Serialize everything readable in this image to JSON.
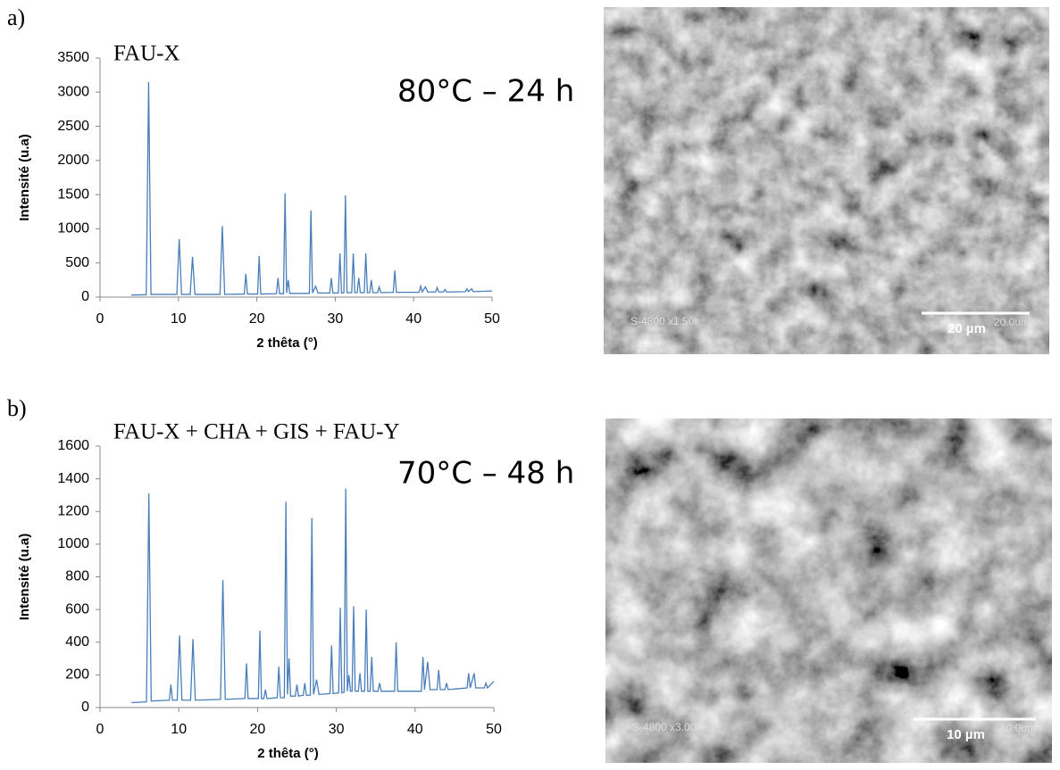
{
  "chart_data": [
    {
      "type": "line",
      "panel_label": "a)",
      "label": "FAU-X",
      "annotation": "80°C – 24 h",
      "xlabel": "2 thêta (°)",
      "ylabel": "Intensité (u.a)",
      "color": "#4a7ebb",
      "xlim": [
        0,
        50
      ],
      "xticks": [
        0,
        10,
        20,
        30,
        40,
        50
      ],
      "ylim": [
        0,
        3500
      ],
      "yticks": [
        0,
        500,
        1000,
        1500,
        2000,
        2500,
        3000,
        3500
      ],
      "x": [
        4,
        5.9,
        6.2,
        6.5,
        9.8,
        10.1,
        10.4,
        11.5,
        11.8,
        12.1,
        15.3,
        15.6,
        15.9,
        18.4,
        18.6,
        18.8,
        20.1,
        20.3,
        20.5,
        22.5,
        22.7,
        22.9,
        23.4,
        23.6,
        23.8,
        24.0,
        24.2,
        26.7,
        26.9,
        27.1,
        27.5,
        27.8,
        29.3,
        29.5,
        29.7,
        30.4,
        30.6,
        30.8,
        31.1,
        31.3,
        31.5,
        32.1,
        32.3,
        32.5,
        32.8,
        33.0,
        33.2,
        33.7,
        33.9,
        34.1,
        34.4,
        34.6,
        34.8,
        35.4,
        35.6,
        35.8,
        37.4,
        37.6,
        37.8,
        40.7,
        40.9,
        41.1,
        41.5,
        41.8,
        42.8,
        43.0,
        43.2,
        43.8,
        44.0,
        44.2,
        46.6,
        46.8,
        47.0,
        47.4,
        47.6,
        50
      ],
      "values": [
        30,
        35,
        3150,
        40,
        40,
        850,
        40,
        40,
        590,
        40,
        40,
        1040,
        40,
        45,
        340,
        45,
        45,
        600,
        45,
        50,
        280,
        50,
        50,
        1520,
        60,
        250,
        55,
        55,
        1270,
        60,
        160,
        60,
        60,
        280,
        60,
        60,
        640,
        60,
        65,
        1490,
        65,
        65,
        640,
        65,
        65,
        280,
        65,
        65,
        640,
        65,
        65,
        250,
        65,
        65,
        150,
        65,
        70,
        390,
        70,
        70,
        160,
        75,
        150,
        75,
        75,
        140,
        75,
        75,
        110,
        75,
        80,
        120,
        80,
        120,
        80,
        90
      ],
      "image_info": "S-4800 x1.50k",
      "image_scale": "20.0um",
      "scale_bar_label": "20 µm"
    },
    {
      "type": "line",
      "panel_label": "b)",
      "label": "FAU-X + CHA + GIS + FAU-Y",
      "annotation": "70°C – 48 h",
      "xlabel": "2 thêta (°)",
      "ylabel": "Intensité (u.a)",
      "color": "#4a7ebb",
      "xlim": [
        0,
        50
      ],
      "xticks": [
        0,
        10,
        20,
        30,
        40,
        50
      ],
      "ylim": [
        0,
        1600
      ],
      "yticks": [
        0,
        200,
        400,
        600,
        800,
        1000,
        1200,
        1400,
        1600
      ],
      "x": [
        4,
        5.9,
        6.2,
        6.5,
        8.8,
        9.0,
        9.2,
        9.8,
        10.1,
        10.4,
        11.5,
        11.8,
        12.1,
        15.3,
        15.6,
        15.9,
        18.4,
        18.6,
        18.8,
        20.1,
        20.3,
        20.5,
        20.8,
        21.0,
        21.2,
        22.5,
        22.7,
        22.9,
        23.4,
        23.6,
        23.8,
        24.0,
        24.2,
        24.8,
        25.0,
        25.2,
        25.8,
        26.0,
        26.2,
        26.7,
        26.9,
        27.1,
        27.5,
        27.8,
        29.2,
        29.4,
        29.6,
        30.3,
        30.5,
        30.7,
        31.0,
        31.2,
        31.4,
        31.6,
        31.8,
        32.0,
        32.2,
        32.4,
        32.8,
        33.0,
        33.2,
        33.6,
        33.8,
        34.0,
        34.3,
        34.5,
        34.7,
        35.3,
        35.5,
        35.7,
        37.4,
        37.6,
        37.8,
        40.8,
        41.0,
        41.2,
        41.6,
        41.9,
        42.8,
        43.0,
        43.2,
        43.8,
        44.0,
        44.2,
        46.6,
        46.8,
        47.0,
        47.5,
        47.7,
        48.8,
        49.0,
        49.2,
        50
      ],
      "values": [
        30,
        35,
        1310,
        40,
        45,
        140,
        45,
        45,
        440,
        45,
        45,
        420,
        45,
        50,
        780,
        50,
        55,
        270,
        55,
        55,
        470,
        55,
        55,
        110,
        55,
        60,
        250,
        60,
        60,
        1260,
        80,
        300,
        70,
        70,
        140,
        70,
        75,
        150,
        75,
        75,
        1160,
        80,
        170,
        80,
        85,
        380,
        85,
        90,
        610,
        90,
        95,
        1340,
        100,
        200,
        100,
        100,
        620,
        100,
        100,
        210,
        100,
        100,
        600,
        100,
        100,
        310,
        100,
        100,
        150,
        100,
        100,
        400,
        100,
        100,
        310,
        110,
        280,
        110,
        110,
        230,
        110,
        110,
        150,
        110,
        120,
        210,
        120,
        210,
        120,
        120,
        150,
        120,
        160
      ],
      "image_info": "S-4800 x3.00k",
      "image_scale": "10.0um",
      "scale_bar_label": "10 µm"
    }
  ]
}
